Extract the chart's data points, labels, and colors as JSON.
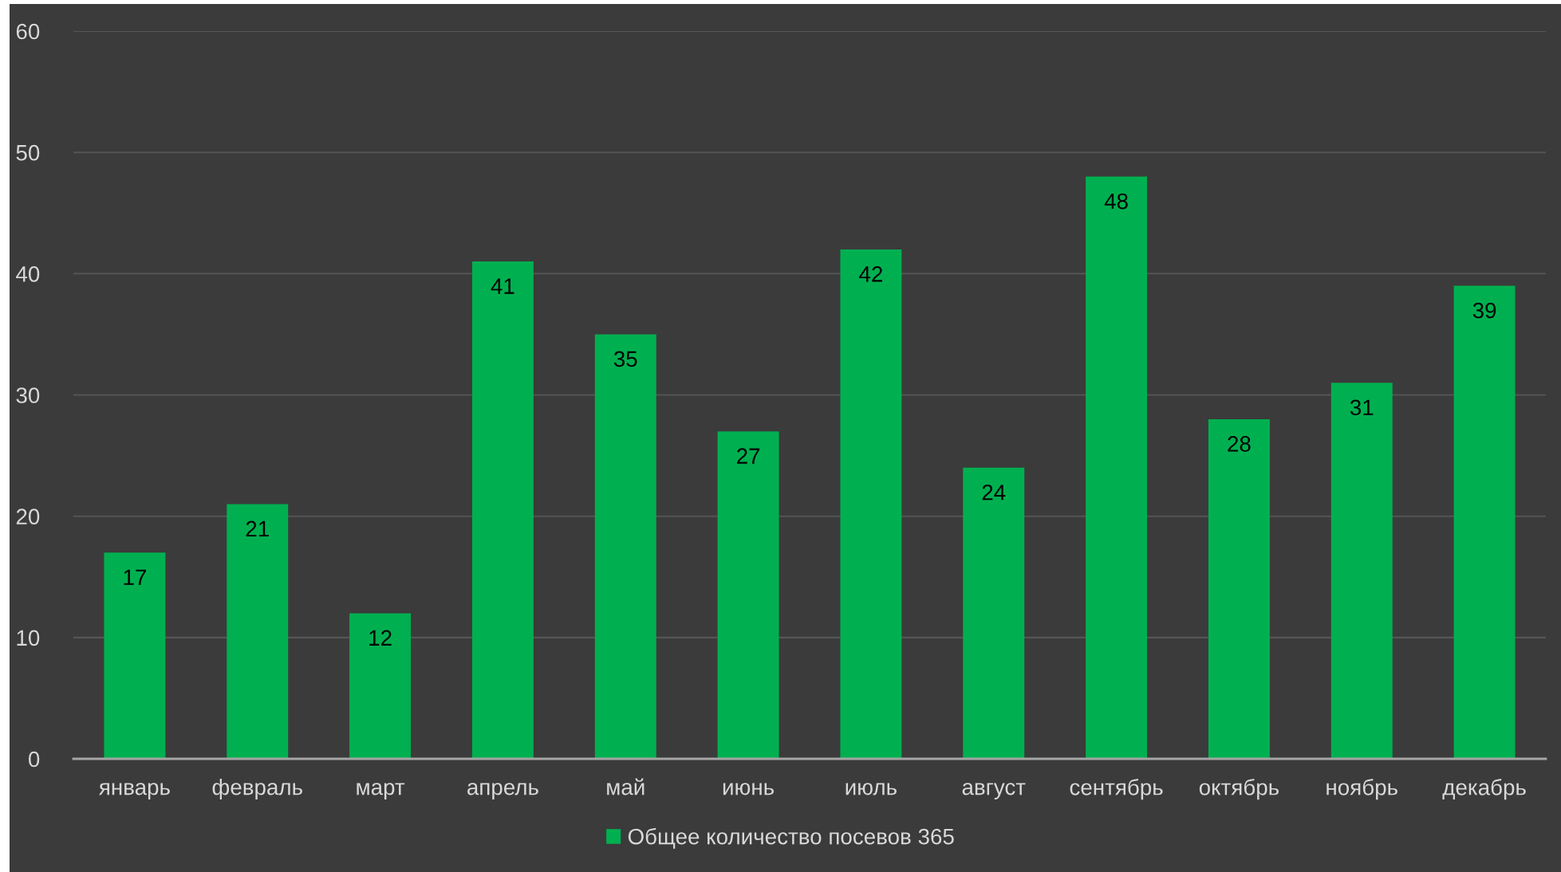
{
  "chart_data": {
    "type": "bar",
    "categories": [
      "январь",
      "февраль",
      "март",
      "апрель",
      "май",
      "июнь",
      "июль",
      "август",
      "сентябрь",
      "октябрь",
      "ноябрь",
      "декабрь"
    ],
    "series": [
      {
        "name": "Общее количество посевов 365",
        "color": "#00b050",
        "values": [
          17,
          21,
          12,
          41,
          35,
          27,
          42,
          24,
          48,
          28,
          31,
          39
        ]
      }
    ],
    "ylim": [
      0,
      60
    ],
    "yticks": [
      0,
      10,
      20,
      30,
      40,
      50,
      60
    ],
    "grid": "y",
    "legend": "bottom",
    "data_labels": true
  }
}
